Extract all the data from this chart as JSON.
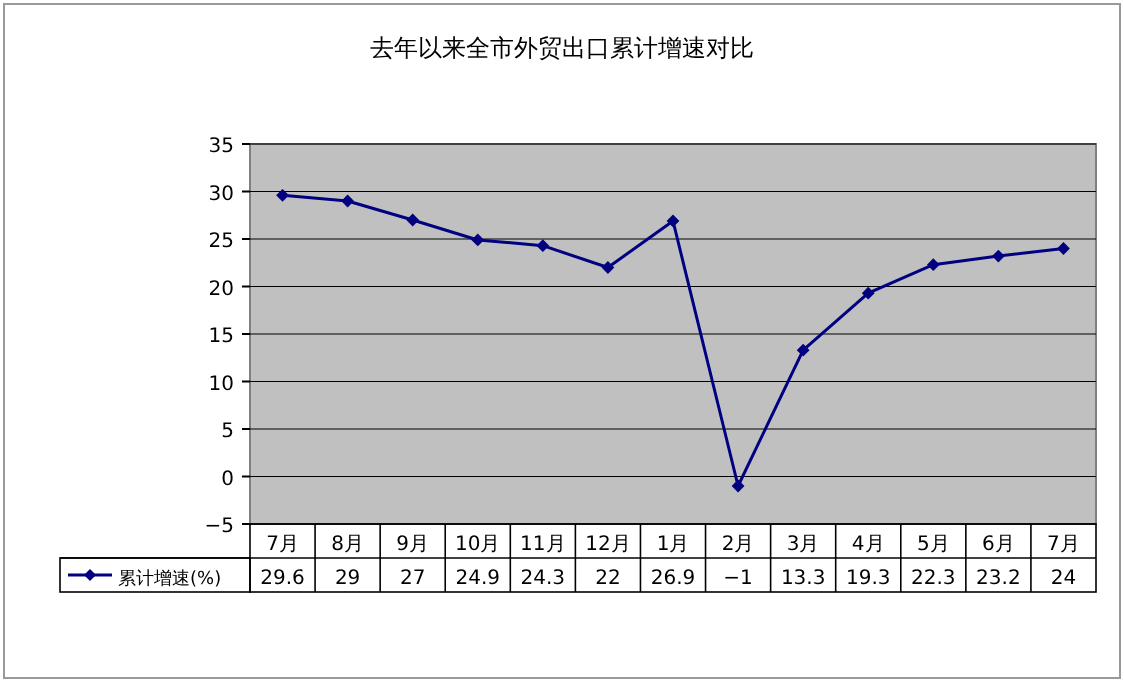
{
  "chart_data": {
    "type": "line",
    "title": "去年以来全市外贸出口累计增速对比",
    "categories": [
      "7月",
      "8月",
      "9月",
      "10月",
      "11月",
      "12月",
      "1月",
      "2月",
      "3月",
      "4月",
      "5月",
      "6月",
      "7月"
    ],
    "series": [
      {
        "name": "累计增速(%)",
        "color": "#000080",
        "values": [
          29.6,
          29,
          27,
          24.9,
          24.3,
          22,
          26.9,
          -1,
          13.3,
          19.3,
          22.3,
          23.2,
          24
        ]
      }
    ],
    "ylim": [
      -5,
      35
    ],
    "yticks": [
      -5,
      0,
      5,
      10,
      15,
      20,
      25,
      30,
      35
    ],
    "grid": "y",
    "marker": "diamond",
    "legend": "bottom",
    "data_labels": true
  }
}
